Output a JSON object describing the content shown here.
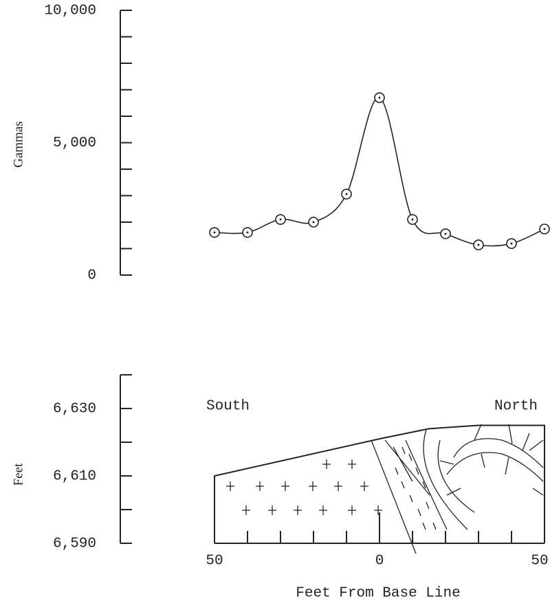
{
  "chart_data": [
    {
      "type": "line",
      "y_label": "Gammas",
      "x": [
        -50,
        -40,
        -30,
        -20,
        -10,
        0,
        10,
        20,
        30,
        40,
        50
      ],
      "series": [
        {
          "color": "#222222",
          "values": [
            1610,
            1610,
            2100,
            2000,
            3060,
            6700,
            2100,
            1560,
            1140,
            1190,
            1740
          ]
        }
      ],
      "xlim": [
        -50,
        50
      ],
      "ylim": [
        0,
        10000
      ],
      "yticks": [
        0,
        {
          "value": 5000,
          "label": "5,000"
        },
        {
          "value": 10000,
          "label": "10,000"
        }
      ],
      "yminorticks": [
        1000,
        2000,
        3000,
        4000,
        6000,
        7000,
        8000,
        9000
      ]
    },
    {
      "type": "area",
      "y_label": "Feet",
      "x_label": "Feet From Base Line",
      "annotations": [
        "South",
        "North"
      ],
      "x": [
        -50,
        0,
        15,
        30,
        50
      ],
      "series": [
        {
          "color": "#222222",
          "values": [
            6610,
            6621,
            6624,
            6625,
            6625
          ]
        }
      ],
      "xlim": [
        -50,
        50
      ],
      "ylim": [
        6590,
        6640
      ],
      "xticks": [
        {
          "value": -50,
          "label": "50"
        },
        0,
        {
          "value": 50,
          "label": "50"
        }
      ],
      "xminorticks": [
        -40,
        -30,
        -20,
        -10,
        10,
        20,
        30,
        40
      ],
      "yticks": [
        {
          "value": 6590,
          "label": "6,590"
        },
        {
          "value": 6610,
          "label": "6,610"
        },
        {
          "value": 6630,
          "label": "6,630"
        }
      ],
      "yminorticks": [
        6600,
        6620,
        6640
      ]
    }
  ]
}
